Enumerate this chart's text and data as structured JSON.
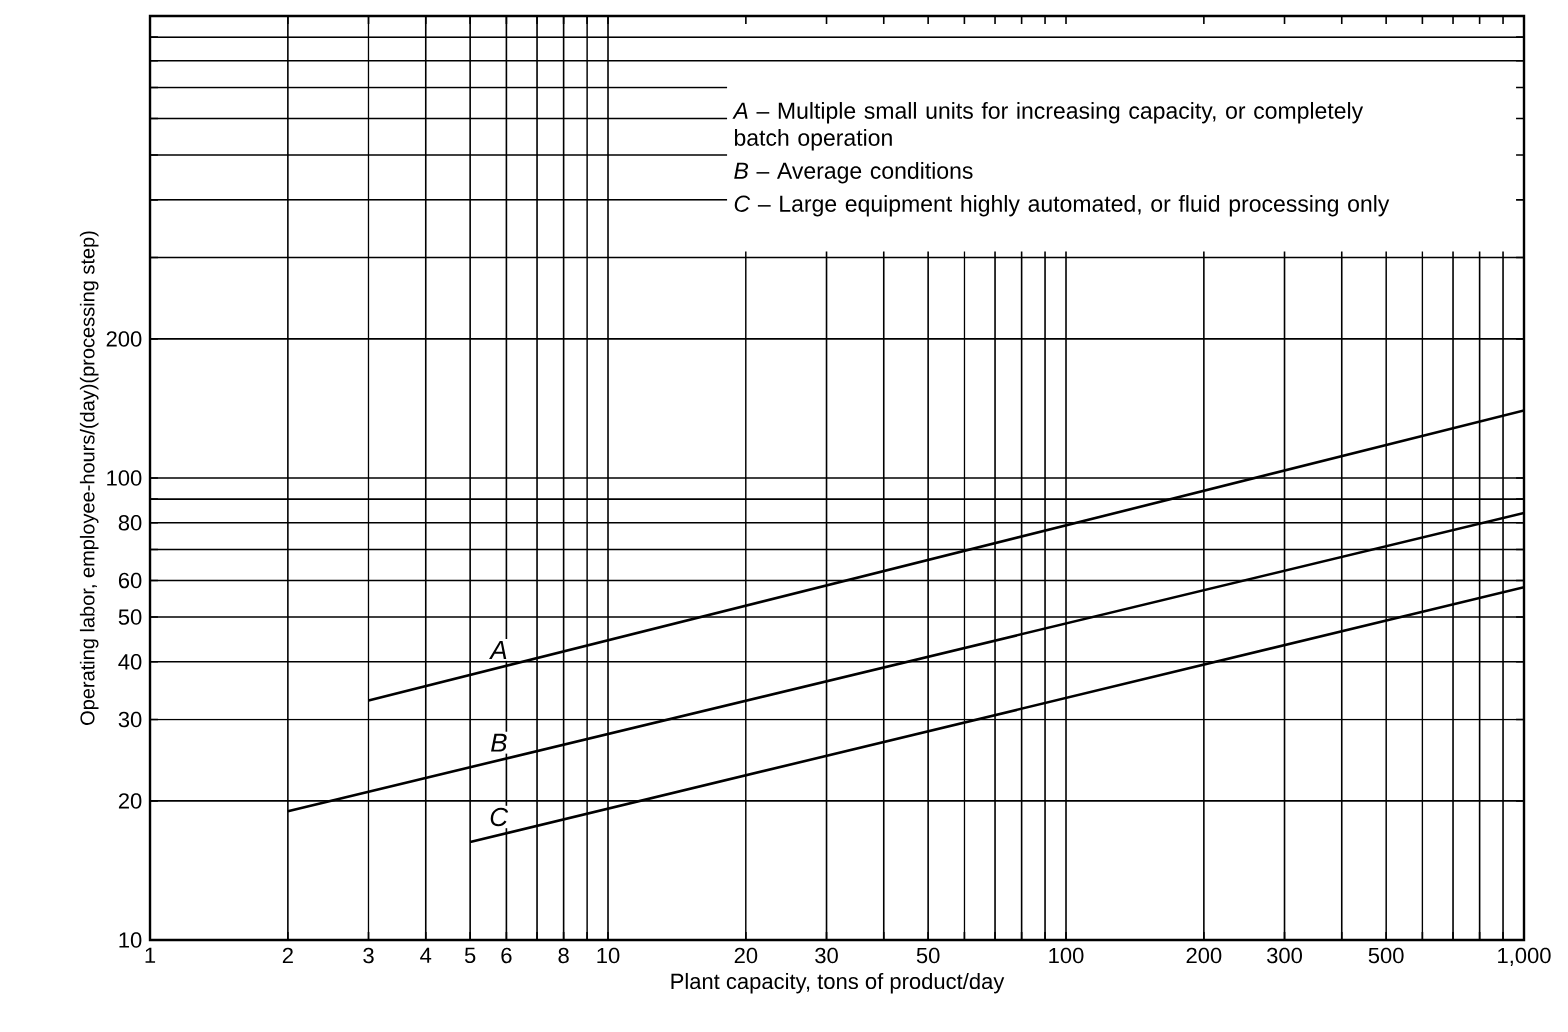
{
  "chart_data": {
    "type": "line",
    "xlabel": "Plant capacity, tons of product/day",
    "ylabel": "Operating labor, employee-hours/(day)(processing step)",
    "log": "xy",
    "grid": true,
    "line_style": "solid",
    "marker": "none",
    "xlim": [
      1,
      1000
    ],
    "ylim": [
      10,
      1000
    ],
    "xticks": [
      1,
      2,
      3,
      4,
      5,
      6,
      {
        "value": 7,
        "label": null
      },
      8,
      {
        "value": 9,
        "label": null
      },
      10,
      20,
      30,
      {
        "value": 40,
        "label": null
      },
      50,
      {
        "value": 60,
        "label": null
      },
      {
        "value": 70,
        "label": null
      },
      {
        "value": 80,
        "label": null
      },
      {
        "value": 90,
        "label": null
      },
      100,
      200,
      300,
      {
        "value": 400,
        "label": null
      },
      500,
      {
        "value": 600,
        "label": null
      },
      {
        "value": 700,
        "label": null
      },
      {
        "value": 800,
        "label": null
      },
      {
        "value": 900,
        "label": null
      },
      {
        "value": 1000,
        "label": "1,000"
      }
    ],
    "yticks": [
      10,
      20,
      30,
      40,
      50,
      60,
      {
        "value": 70,
        "label": null
      },
      80,
      {
        "value": 90,
        "label": null
      },
      100,
      200,
      {
        "value": 300,
        "label": null
      },
      {
        "value": 400,
        "label": null
      },
      {
        "value": 500,
        "label": null
      },
      {
        "value": 600,
        "label": null
      },
      {
        "value": 700,
        "label": null
      },
      {
        "value": 800,
        "label": null
      },
      {
        "value": 900,
        "label": null
      },
      {
        "value": 1000,
        "label": null
      }
    ],
    "series": [
      {
        "name": "A",
        "color": "#000000",
        "x": [
          3,
          1000
        ],
        "values": [
          33,
          140
        ]
      },
      {
        "name": "B",
        "color": "#000000",
        "x": [
          2,
          1000
        ],
        "values": [
          19,
          84
        ]
      },
      {
        "name": "C",
        "color": "#000000",
        "x": [
          5,
          1000
        ],
        "values": [
          16.3,
          58
        ]
      }
    ],
    "annotations": [
      "*A* – Multiple small units for increasing capacity, or completely batch operation",
      "*B* – Average conditions",
      "*C* – Large equipment highly automated, or fluid processing only"
    ]
  }
}
